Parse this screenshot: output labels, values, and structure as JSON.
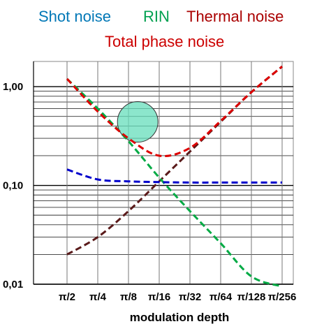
{
  "chart_data": {
    "type": "line",
    "y_scale": "log",
    "ylim": [
      0.01,
      1.8
    ],
    "grid": true,
    "legend_placement": "top",
    "xlabel": "modulation depth",
    "ylabel": "",
    "categories": [
      "π/2",
      "π/4",
      "π/8",
      "π/16",
      "π/32",
      "π/64",
      "π/128",
      "π/256"
    ],
    "y_tick_labels": [
      "1,00",
      "0,10",
      "0,01"
    ],
    "y_tick_values": [
      1.0,
      0.1,
      0.01
    ],
    "series": [
      {
        "name": "Shot noise",
        "color": "#0000cc",
        "legend_color": "#0077b6",
        "values": [
          0.145,
          0.115,
          0.11,
          0.108,
          0.107,
          0.107,
          0.107,
          0.107
        ]
      },
      {
        "name": "RIN",
        "color": "#00aa44",
        "legend_color": "#00a050",
        "values": [
          1.2,
          0.6,
          0.28,
          0.12,
          0.055,
          0.026,
          0.012,
          0.0095
        ]
      },
      {
        "name": "Thermal noise",
        "color": "#5a1a1a",
        "legend_color": "#aa0000",
        "values": [
          0.02,
          0.03,
          0.055,
          0.11,
          0.22,
          0.44,
          0.88,
          1.6
        ]
      },
      {
        "name": "Total phase noise",
        "color": "#dd0000",
        "legend_color": "#cc0000",
        "values": [
          1.2,
          0.56,
          0.3,
          0.2,
          0.24,
          0.45,
          0.88,
          1.6
        ]
      }
    ],
    "annotation": {
      "shape": "circle",
      "color": "#66ddbb",
      "x_category_position": 2.3,
      "y_value": 0.44
    }
  }
}
